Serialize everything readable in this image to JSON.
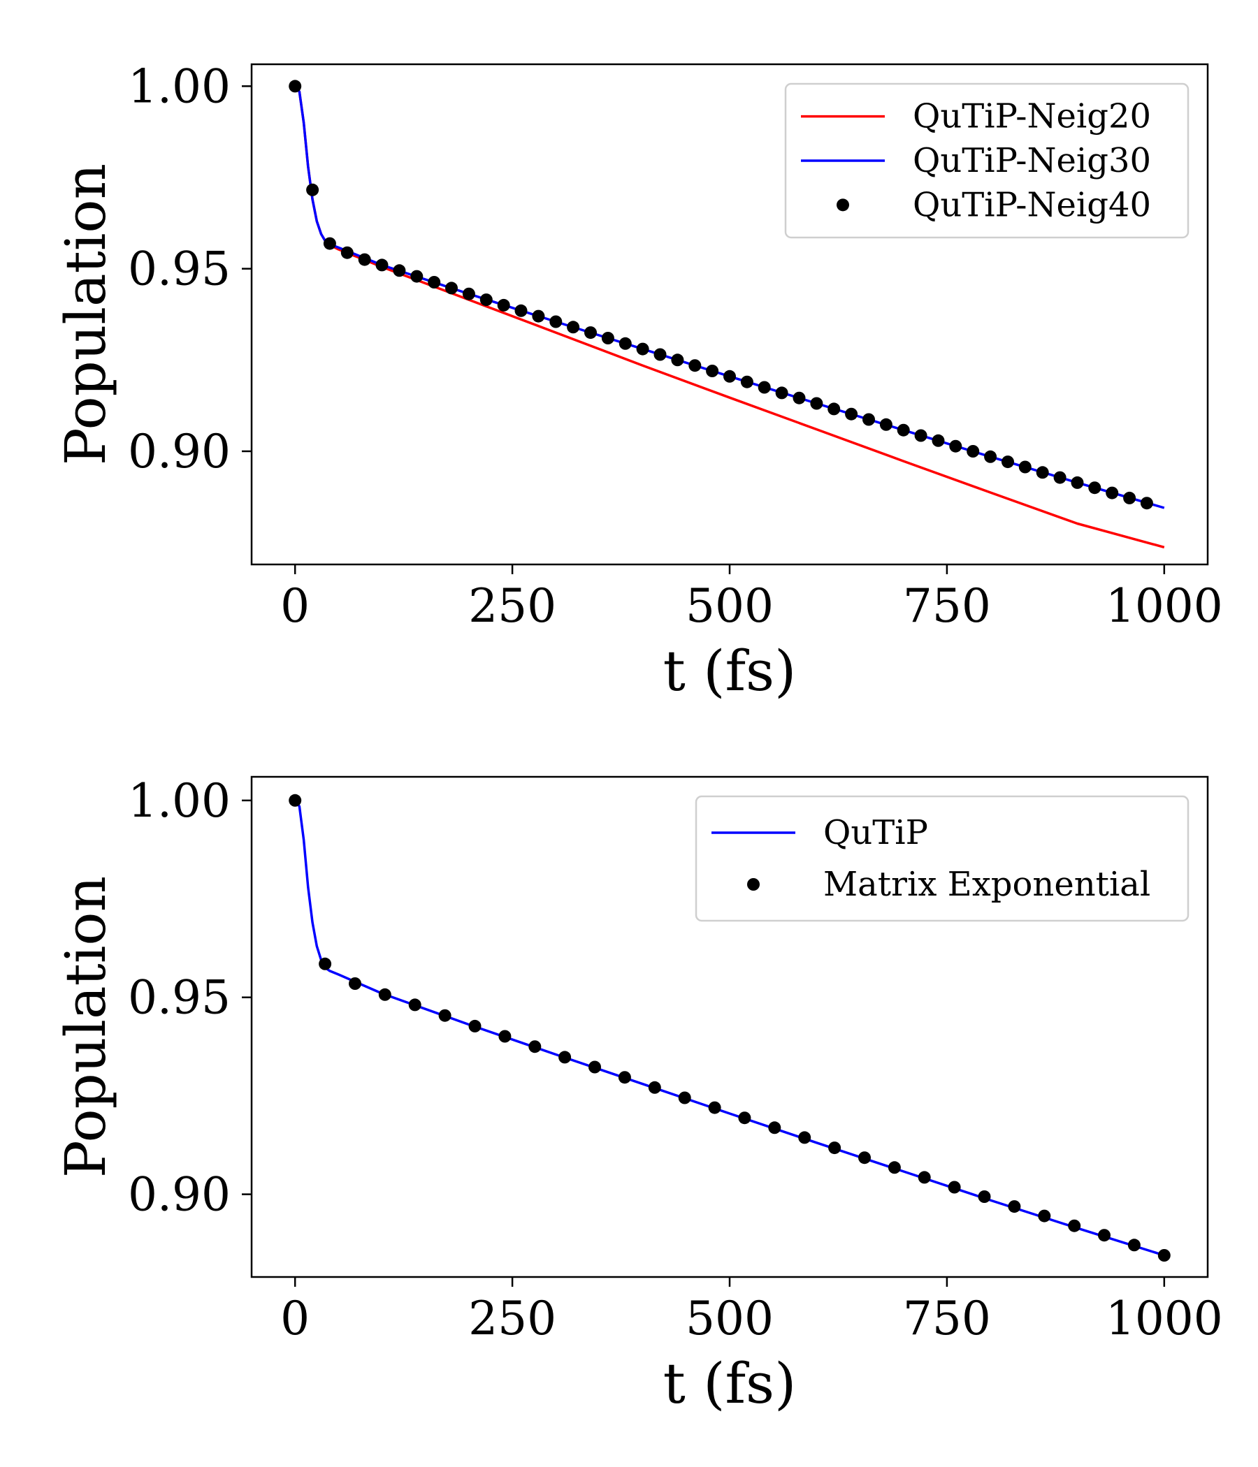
{
  "chart_data": [
    {
      "type": "line",
      "xlabel": "t (fs)",
      "ylabel": "Population",
      "xlim": [
        -50,
        1050
      ],
      "ylim": [
        0.869,
        1.006
      ],
      "xticks": [
        0,
        250,
        500,
        750,
        1000
      ],
      "xticklabels": [
        "0",
        "250",
        "500",
        "750",
        "1000"
      ],
      "yticks": [
        0.9,
        0.95,
        1.0
      ],
      "yticklabels": [
        "0.90",
        "0.95",
        "1.00"
      ],
      "legend_position": "top-right",
      "series": [
        {
          "name": "QuTiP-Neig20",
          "style": "line",
          "color": "#ff0000",
          "x": [
            0,
            5,
            10,
            15,
            20,
            25,
            30,
            35,
            40,
            50,
            100,
            200,
            300,
            400,
            500,
            600,
            700,
            800,
            900,
            1000
          ],
          "y": [
            1.0,
            0.9985,
            0.99,
            0.978,
            0.969,
            0.963,
            0.9595,
            0.9575,
            0.9565,
            0.9553,
            0.9505,
            0.9415,
            0.9325,
            0.9235,
            0.9147,
            0.906,
            0.8973,
            0.8887,
            0.8802,
            0.8737
          ]
        },
        {
          "name": "QuTiP-Neig30",
          "style": "line",
          "color": "#0000ff",
          "x": [
            0,
            5,
            10,
            15,
            20,
            25,
            30,
            35,
            40,
            50,
            100,
            200,
            300,
            400,
            500,
            600,
            700,
            800,
            900,
            1000
          ],
          "y": [
            1.0,
            0.9985,
            0.99,
            0.978,
            0.969,
            0.963,
            0.9595,
            0.9575,
            0.9567,
            0.9558,
            0.951,
            0.9431,
            0.9355,
            0.928,
            0.9205,
            0.9131,
            0.9058,
            0.8985,
            0.8914,
            0.8845
          ]
        },
        {
          "name": "QuTiP-Neig40",
          "style": "markers",
          "color": "#000000",
          "x": [
            0,
            20,
            40,
            60,
            80,
            100,
            120,
            140,
            160,
            180,
            200,
            220,
            240,
            260,
            280,
            300,
            320,
            340,
            360,
            380,
            400,
            420,
            440,
            460,
            480,
            500,
            520,
            540,
            560,
            580,
            600,
            620,
            640,
            660,
            680,
            700,
            720,
            740,
            760,
            780,
            800,
            820,
            840,
            860,
            880,
            900,
            920,
            940,
            960,
            980
          ],
          "y": [
            1.0,
            0.9716,
            0.9569,
            0.9544,
            0.9525,
            0.951,
            0.9495,
            0.9479,
            0.9463,
            0.9447,
            0.9431,
            0.9415,
            0.94,
            0.9385,
            0.937,
            0.9355,
            0.934,
            0.9325,
            0.931,
            0.9295,
            0.928,
            0.9265,
            0.925,
            0.9235,
            0.922,
            0.9205,
            0.919,
            0.9175,
            0.916,
            0.9146,
            0.9131,
            0.9116,
            0.9102,
            0.9087,
            0.9073,
            0.9058,
            0.9043,
            0.9029,
            0.9014,
            0.9,
            0.8985,
            0.8971,
            0.8957,
            0.8942,
            0.8928,
            0.8914,
            0.89,
            0.8886,
            0.8872,
            0.8858
          ]
        }
      ]
    },
    {
      "type": "line",
      "xlabel": "t (fs)",
      "ylabel": "Population",
      "xlim": [
        -50,
        1050
      ],
      "ylim": [
        0.879,
        1.006
      ],
      "xticks": [
        0,
        250,
        500,
        750,
        1000
      ],
      "xticklabels": [
        "0",
        "250",
        "500",
        "750",
        "1000"
      ],
      "yticks": [
        0.9,
        0.95,
        1.0
      ],
      "yticklabels": [
        "0.90",
        "0.95",
        "1.00"
      ],
      "legend_position": "top-right",
      "series": [
        {
          "name": "QuTiP",
          "style": "line",
          "color": "#0000ff",
          "x": [
            0,
            5,
            10,
            15,
            20,
            25,
            30,
            35,
            40,
            50,
            100,
            200,
            300,
            400,
            500,
            600,
            700,
            800,
            900,
            1000
          ],
          "y": [
            1.0,
            0.9985,
            0.99,
            0.978,
            0.969,
            0.963,
            0.9595,
            0.9575,
            0.9567,
            0.9558,
            0.951,
            0.9431,
            0.9355,
            0.928,
            0.9205,
            0.9131,
            0.9058,
            0.8985,
            0.8914,
            0.8845
          ]
        },
        {
          "name": "Matrix Exponential",
          "style": "markers",
          "color": "#000000",
          "x": [
            0,
            34.5,
            69,
            103.4,
            137.9,
            172.4,
            206.9,
            241.4,
            275.9,
            310.3,
            344.8,
            379.3,
            413.8,
            448.3,
            482.8,
            517.2,
            551.7,
            586.2,
            620.7,
            655.2,
            689.7,
            724.1,
            758.6,
            793.1,
            827.6,
            862.1,
            896.6,
            931,
            965.5,
            1000
          ],
          "y": [
            1.0,
            0.9585,
            0.9535,
            0.9507,
            0.9481,
            0.9454,
            0.9427,
            0.9401,
            0.9375,
            0.9348,
            0.9323,
            0.9297,
            0.9271,
            0.9245,
            0.922,
            0.9194,
            0.9169,
            0.9144,
            0.9118,
            0.9093,
            0.9068,
            0.9043,
            0.9018,
            0.8994,
            0.8969,
            0.8945,
            0.892,
            0.8896,
            0.8871,
            0.8845
          ]
        }
      ]
    }
  ]
}
